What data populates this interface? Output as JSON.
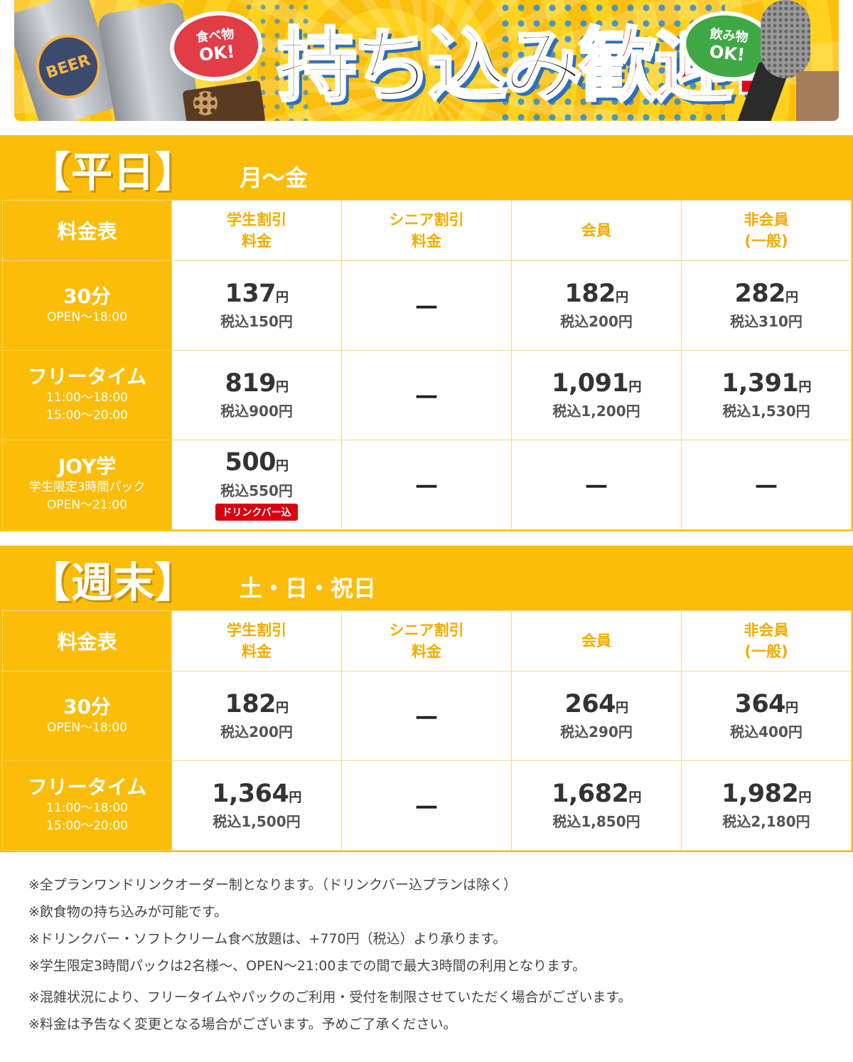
{
  "banner": {
    "can_label": "BEER",
    "bubble_food": [
      "食べ物",
      "OK!"
    ],
    "bubble_drink": [
      "飲み物",
      "OK!"
    ],
    "headline_black": "持ち込み",
    "headline_red": "歓迎!"
  },
  "colors": {
    "accent": "#fbbd0a",
    "header_text": "#f2ac00",
    "badge": "#d7000f",
    "headline_red": "#e60012"
  },
  "weekday": {
    "title": "【平日】",
    "days": "月～金",
    "corner": "料金表",
    "columns": [
      [
        "学生割引",
        "料金"
      ],
      [
        "シニア割引",
        "料金"
      ],
      [
        "会員"
      ],
      [
        "非会員",
        "(一般)"
      ]
    ],
    "rows": [
      {
        "label": "30分",
        "sub": [
          "OPEN～18:00"
        ],
        "cells": [
          {
            "price": "137",
            "tax": "税込150円"
          },
          {
            "dash": "－"
          },
          {
            "price": "182",
            "tax": "税込200円"
          },
          {
            "price": "282",
            "tax": "税込310円"
          }
        ]
      },
      {
        "label": "フリータイム",
        "sub": [
          "11:00～18:00",
          "15:00～20:00"
        ],
        "cells": [
          {
            "price": "819",
            "tax": "税込900円"
          },
          {
            "dash": "－"
          },
          {
            "price": "1,091",
            "tax": "税込1,200円"
          },
          {
            "price": "1,391",
            "tax": "税込1,530円"
          }
        ]
      },
      {
        "label": "JOY学",
        "sub": [
          "学生限定3時間パック",
          "OPEN～21:00"
        ],
        "cells": [
          {
            "price": "500",
            "tax": "税込550円",
            "badge": "ドリンクバー込"
          },
          {
            "dash": "－"
          },
          {
            "dash": "－"
          },
          {
            "dash": "－"
          }
        ]
      }
    ]
  },
  "weekend": {
    "title": "【週末】",
    "days": "土・日・祝日",
    "corner": "料金表",
    "columns": [
      [
        "学生割引",
        "料金"
      ],
      [
        "シニア割引",
        "料金"
      ],
      [
        "会員"
      ],
      [
        "非会員",
        "(一般)"
      ]
    ],
    "rows": [
      {
        "label": "30分",
        "sub": [
          "OPEN～18:00"
        ],
        "cells": [
          {
            "price": "182",
            "tax": "税込200円"
          },
          {
            "dash": "－"
          },
          {
            "price": "264",
            "tax": "税込290円"
          },
          {
            "price": "364",
            "tax": "税込400円"
          }
        ]
      },
      {
        "label": "フリータイム",
        "sub": [
          "11:00～18:00",
          "15:00～20:00"
        ],
        "cells": [
          {
            "price": "1,364",
            "tax": "税込1,500円"
          },
          {
            "dash": "－"
          },
          {
            "price": "1,682",
            "tax": "税込1,850円"
          },
          {
            "price": "1,982",
            "tax": "税込2,180円"
          }
        ]
      }
    ]
  },
  "yen": "円",
  "notes": [
    "※全プランワンドリンクオーダー制となります。（ドリンクバー込プランは除く）",
    "※飲食物の持ち込みが可能です。",
    "※ドリンクバー・ソフトクリーム食べ放題は、+770円（税込）より承ります。",
    "※学生限定3時間パックは2名様～、OPEN～21:00までの間で最大3時間の利用となります。",
    "※混雑状況により、フリータイムやパックのご利用・受付を制限させていただく場合がございます。",
    "※料金は予告なく変更となる場合がございます。予めご了承ください。"
  ]
}
